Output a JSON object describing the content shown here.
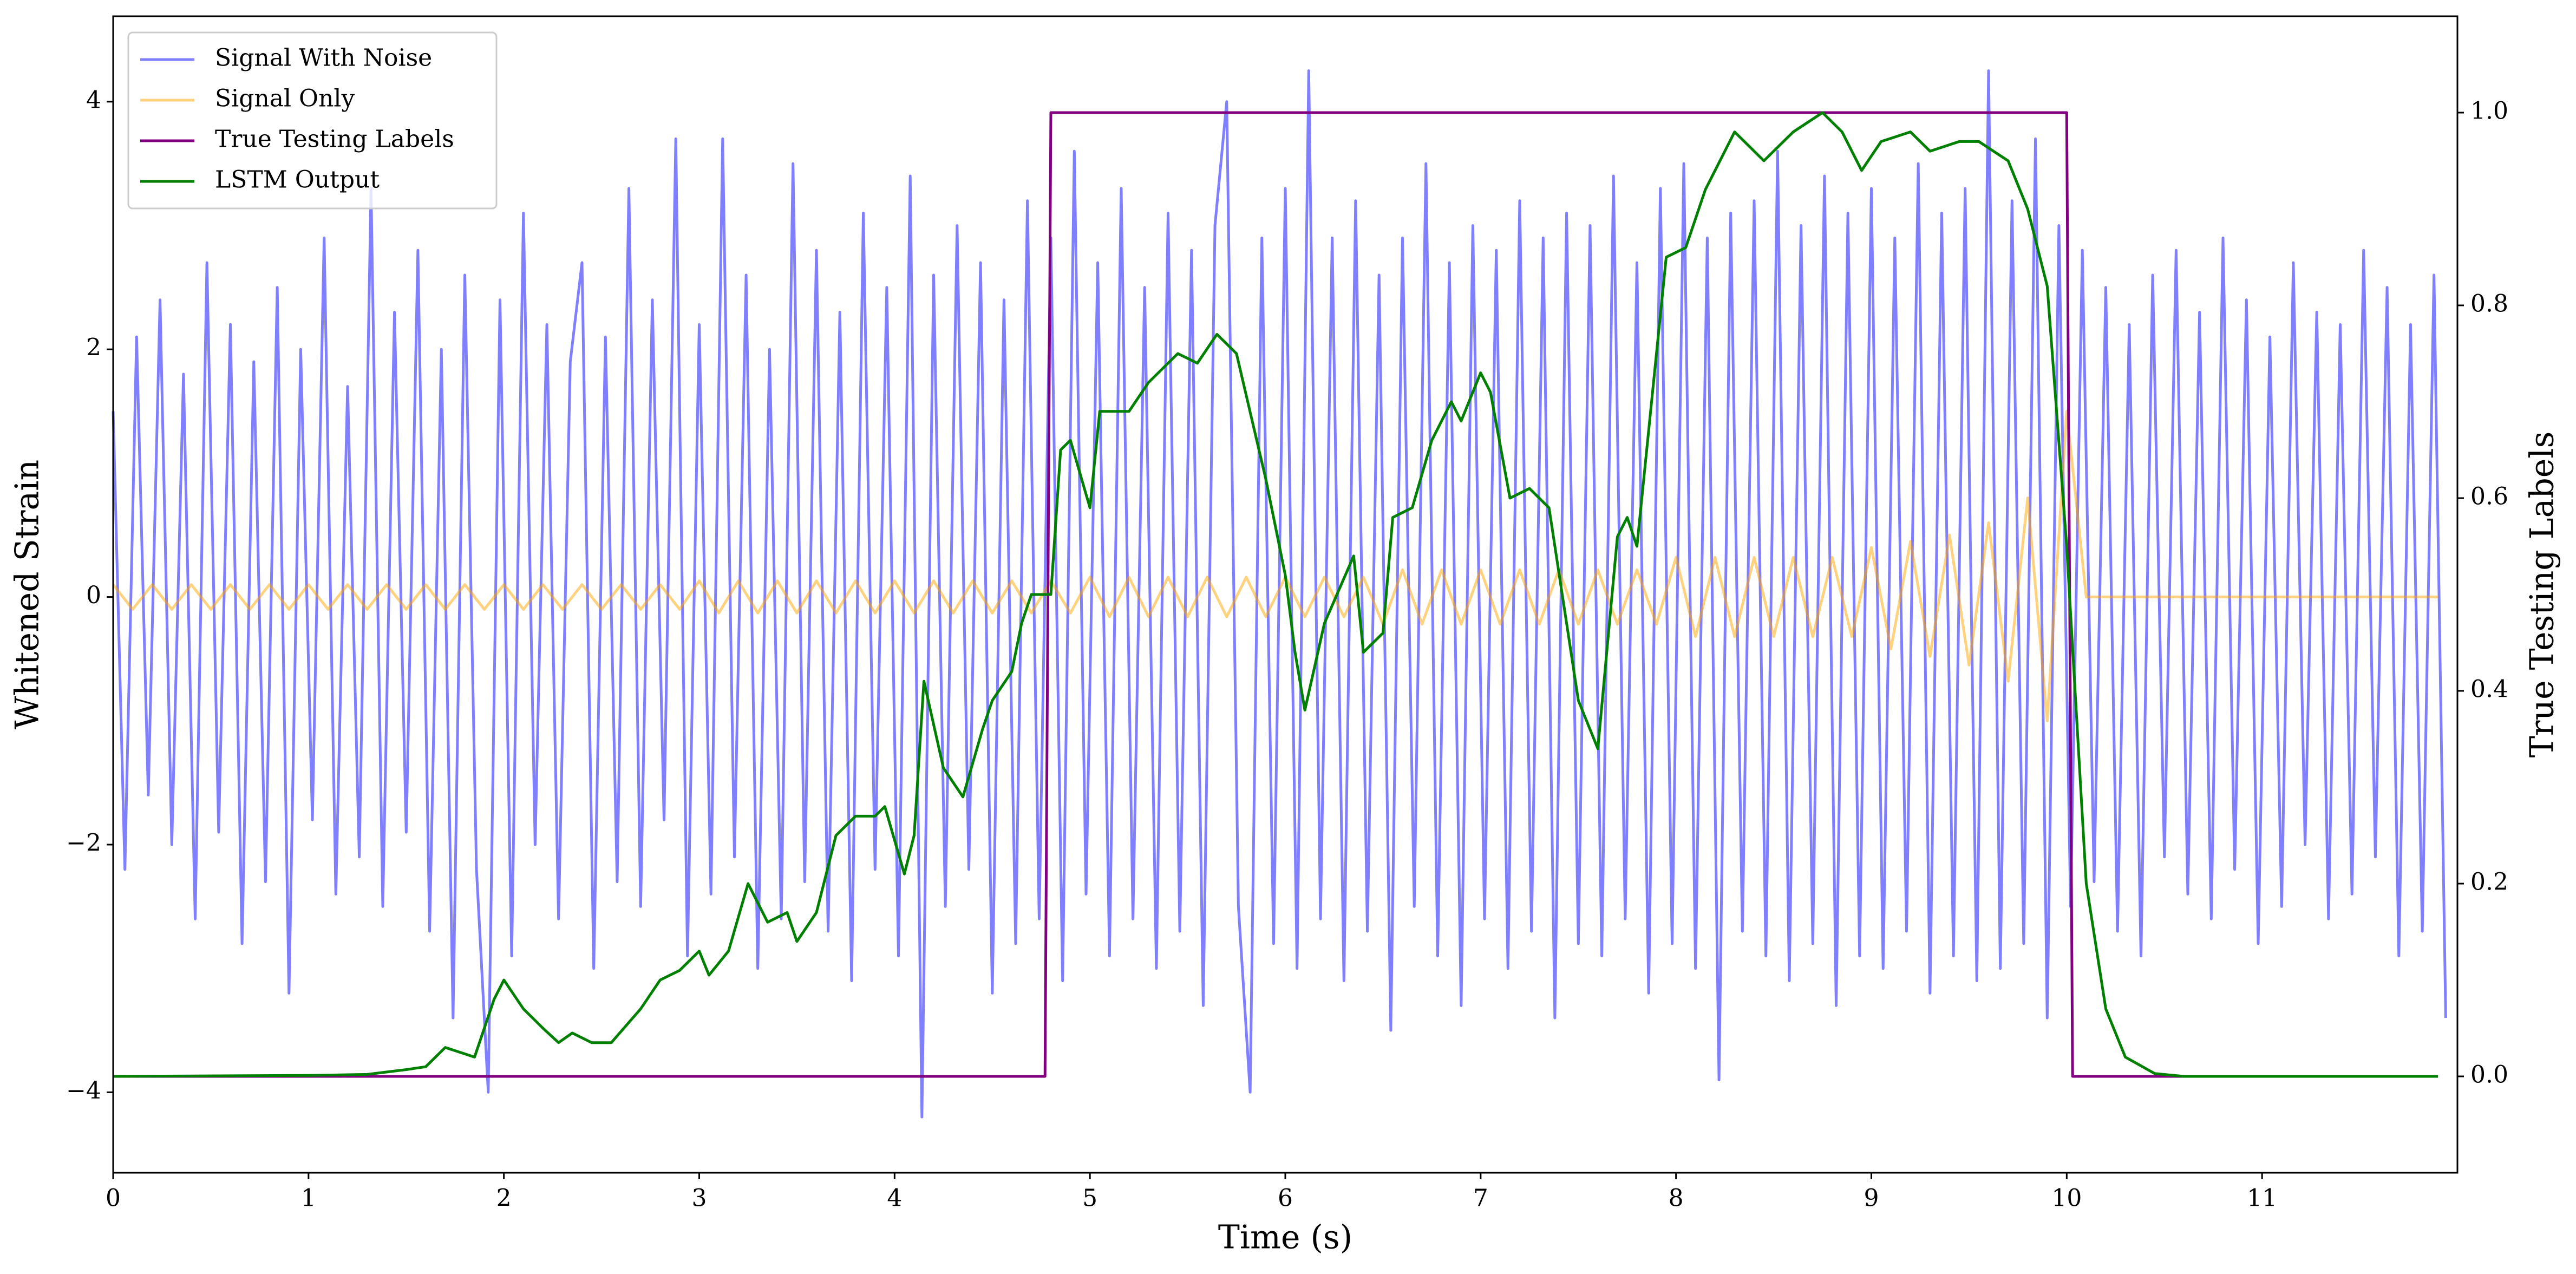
{
  "chart_data": {
    "type": "line",
    "xlabel": "Time (s)",
    "ylabel": "Whitened Strain",
    "y2label": "True Testing Labels",
    "xlim": [
      0,
      12
    ],
    "xticks": [
      0,
      1,
      2,
      3,
      4,
      5,
      6,
      7,
      8,
      9,
      10,
      11
    ],
    "ylim": [
      -4.65,
      4.69
    ],
    "yticks": [
      {
        "value": -4,
        "label": "−4"
      },
      {
        "value": -2,
        "label": "−2"
      },
      0,
      2,
      4
    ],
    "y2lim": [
      -0.1,
      1.1
    ],
    "y2ticks": [
      {
        "value": 0,
        "label": "0.0"
      },
      {
        "value": 0.2,
        "label": "0.2"
      },
      {
        "value": 0.4,
        "label": "0.4"
      },
      {
        "value": 0.6,
        "label": "0.6"
      },
      {
        "value": 0.8,
        "label": "0.8"
      },
      {
        "value": 1,
        "label": "1.0"
      }
    ],
    "legend": "upper left",
    "grid": false,
    "series": [
      {
        "name": "Signal With Noise",
        "color": "#0000ff",
        "alpha": 0.5,
        "x": [
          0,
          0.06,
          0.12,
          0.18,
          0.24,
          0.3,
          0.36,
          0.42,
          0.48,
          0.54,
          0.6,
          0.66,
          0.72,
          0.78,
          0.84,
          0.9,
          0.96,
          1.02,
          1.08,
          1.14,
          1.2,
          1.26,
          1.32,
          1.38,
          1.44,
          1.5,
          1.56,
          1.62,
          1.68,
          1.74,
          1.8,
          1.86,
          1.92,
          1.98,
          2.04,
          2.1,
          2.16,
          2.22,
          2.28,
          2.34,
          2.4,
          2.46,
          2.52,
          2.58,
          2.64,
          2.7,
          2.76,
          2.82,
          2.88,
          2.94,
          3,
          3.06,
          3.12,
          3.18,
          3.24,
          3.3,
          3.36,
          3.42,
          3.48,
          3.54,
          3.6,
          3.66,
          3.72,
          3.78,
          3.84,
          3.9,
          3.96,
          4.02,
          4.08,
          4.14,
          4.2,
          4.26,
          4.32,
          4.38,
          4.44,
          4.5,
          4.56,
          4.62,
          4.68,
          4.74,
          4.8,
          4.86,
          4.92,
          4.98,
          5.04,
          5.1,
          5.16,
          5.22,
          5.28,
          5.34,
          5.4,
          5.46,
          5.52,
          5.58,
          5.64,
          5.7,
          5.76,
          5.82,
          5.88,
          5.94,
          6,
          6.06,
          6.12,
          6.18,
          6.24,
          6.3,
          6.36,
          6.42,
          6.48,
          6.54,
          6.6,
          6.66,
          6.72,
          6.78,
          6.84,
          6.9,
          6.96,
          7.02,
          7.08,
          7.14,
          7.2,
          7.26,
          7.32,
          7.38,
          7.44,
          7.5,
          7.56,
          7.62,
          7.68,
          7.74,
          7.8,
          7.86,
          7.92,
          7.98,
          8.04,
          8.1,
          8.16,
          8.22,
          8.28,
          8.34,
          8.4,
          8.46,
          8.52,
          8.58,
          8.64,
          8.7,
          8.76,
          8.82,
          8.88,
          8.94,
          9,
          9.06,
          9.12,
          9.18,
          9.24,
          9.3,
          9.36,
          9.42,
          9.48,
          9.54,
          9.6,
          9.66,
          9.72,
          9.78,
          9.84,
          9.9,
          9.96,
          10.02,
          10.08,
          10.14,
          10.2,
          10.26,
          10.32,
          10.38,
          10.44,
          10.5,
          10.56,
          10.62,
          10.68,
          10.74,
          10.8,
          10.86,
          10.92,
          10.98,
          11.04,
          11.1,
          11.16,
          11.22,
          11.28,
          11.34,
          11.4,
          11.46,
          11.52,
          11.58,
          11.64,
          11.7,
          11.76,
          11.82,
          11.88,
          11.94
        ],
        "values": [
          1.5,
          -2.2,
          2.1,
          -1.6,
          2.4,
          -2.0,
          1.8,
          -2.6,
          2.7,
          -1.9,
          2.2,
          -2.8,
          1.9,
          -2.3,
          2.5,
          -3.2,
          2.0,
          -1.8,
          2.9,
          -2.4,
          1.7,
          -2.1,
          3.3,
          -2.5,
          2.3,
          -1.9,
          2.8,
          -2.7,
          2.0,
          -3.4,
          2.6,
          -2.2,
          -4.0,
          2.4,
          -2.9,
          3.1,
          -2.0,
          2.2,
          -2.6,
          1.9,
          2.7,
          -3.0,
          2.1,
          -2.3,
          3.3,
          -2.5,
          2.4,
          -1.8,
          3.7,
          -2.9,
          2.2,
          -2.4,
          3.7,
          -2.1,
          2.6,
          -3.0,
          2.0,
          -2.6,
          3.5,
          -2.3,
          2.8,
          -2.7,
          2.3,
          -3.1,
          3.1,
          -2.2,
          2.5,
          -2.9,
          3.4,
          -4.2,
          2.6,
          -2.5,
          3.0,
          -2.2,
          2.7,
          -3.2,
          2.4,
          -2.8,
          3.2,
          -2.6,
          2.9,
          -3.1,
          3.6,
          -2.4,
          2.7,
          -2.9,
          3.3,
          -2.6,
          2.5,
          -3.0,
          3.1,
          -2.7,
          2.8,
          -3.3,
          3.0,
          4.0,
          -2.5,
          -4.0,
          2.9,
          -2.8,
          3.3,
          -3.0,
          4.25,
          -2.6,
          2.9,
          -3.1,
          3.2,
          -2.7,
          2.6,
          -3.5,
          2.9,
          -2.5,
          3.5,
          -2.9,
          2.7,
          -3.3,
          3.0,
          -2.6,
          2.8,
          -3.0,
          3.2,
          -2.7,
          2.9,
          -3.4,
          3.1,
          -2.8,
          3.0,
          -2.9,
          3.4,
          -2.6,
          2.7,
          -3.2,
          3.3,
          -2.8,
          3.5,
          -3.0,
          2.9,
          -3.9,
          3.1,
          -2.7,
          3.2,
          -2.9,
          3.6,
          -3.1,
          3.0,
          -2.8,
          3.4,
          -3.3,
          3.1,
          -2.9,
          3.3,
          -3.0,
          2.9,
          -2.7,
          3.5,
          -3.2,
          3.1,
          -2.9,
          3.3,
          -3.1,
          4.25,
          -3.0,
          3.2,
          -2.8,
          3.7,
          -3.4,
          3.0,
          -2.5,
          2.8,
          -2.3,
          2.5,
          -2.7,
          2.2,
          -2.9,
          2.6,
          -2.1,
          2.8,
          -2.4,
          2.3,
          -2.6,
          2.9,
          -2.2,
          2.4,
          -2.8,
          2.1,
          -2.5,
          2.7,
          -2.0,
          2.3,
          -2.6,
          2.2,
          -2.4,
          2.8,
          -2.1,
          2.5,
          -2.9,
          2.2,
          -2.7,
          2.6,
          -3.4
        ]
      },
      {
        "name": "Signal Only",
        "color": "#ffa500",
        "alpha": 0.5,
        "x": [
          0,
          0.1,
          0.2,
          0.3,
          0.4,
          0.5,
          0.6,
          0.7,
          0.8,
          0.9,
          1,
          1.1,
          1.2,
          1.3,
          1.4,
          1.5,
          1.6,
          1.7,
          1.8,
          1.9,
          2,
          2.1,
          2.2,
          2.3,
          2.4,
          2.5,
          2.6,
          2.7,
          2.8,
          2.9,
          3,
          3.1,
          3.2,
          3.3,
          3.4,
          3.5,
          3.6,
          3.7,
          3.8,
          3.9,
          4,
          4.1,
          4.2,
          4.3,
          4.4,
          4.5,
          4.6,
          4.7,
          4.8,
          4.9,
          5,
          5.1,
          5.2,
          5.3,
          5.4,
          5.5,
          5.6,
          5.7,
          5.8,
          5.9,
          6,
          6.1,
          6.2,
          6.3,
          6.4,
          6.5,
          6.6,
          6.7,
          6.8,
          6.9,
          7,
          7.1,
          7.2,
          7.3,
          7.4,
          7.5,
          7.6,
          7.7,
          7.8,
          7.9,
          8,
          8.1,
          8.2,
          8.3,
          8.4,
          8.5,
          8.6,
          8.7,
          8.8,
          8.9,
          9,
          9.1,
          9.2,
          9.3,
          9.4,
          9.5,
          9.6,
          9.7,
          9.8,
          9.9,
          10,
          10.1,
          10.2,
          10.3,
          10.4,
          10.5,
          10.6,
          10.7,
          10.8,
          10.9,
          11,
          11.1,
          11.2,
          11.3,
          11.4,
          11.5,
          11.6,
          11.7,
          11.8,
          11.9
        ],
        "values": [
          0.1,
          -0.1,
          0.1,
          -0.1,
          0.1,
          -0.1,
          0.1,
          -0.1,
          0.1,
          -0.1,
          0.1,
          -0.1,
          0.1,
          -0.1,
          0.1,
          -0.1,
          0.1,
          -0.1,
          0.1,
          -0.1,
          0.1,
          -0.1,
          0.1,
          -0.1,
          0.1,
          -0.1,
          0.1,
          -0.1,
          0.1,
          -0.1,
          0.13,
          -0.13,
          0.13,
          -0.13,
          0.13,
          -0.13,
          0.13,
          -0.13,
          0.13,
          -0.13,
          0.13,
          -0.13,
          0.13,
          -0.13,
          0.13,
          -0.13,
          0.13,
          -0.13,
          0.13,
          -0.13,
          0.16,
          -0.16,
          0.16,
          -0.16,
          0.16,
          -0.16,
          0.16,
          -0.16,
          0.16,
          -0.16,
          0.16,
          -0.16,
          0.16,
          -0.16,
          0.16,
          -0.22,
          0.22,
          -0.22,
          0.22,
          -0.22,
          0.22,
          -0.22,
          0.22,
          -0.22,
          0.22,
          -0.22,
          0.22,
          -0.22,
          0.22,
          -0.22,
          0.32,
          -0.32,
          0.32,
          -0.32,
          0.32,
          -0.32,
          0.32,
          -0.32,
          0.32,
          -0.32,
          0.4,
          -0.42,
          0.45,
          -0.48,
          0.5,
          -0.55,
          0.6,
          -0.68,
          0.8,
          -1.0,
          1.5,
          0,
          0,
          0,
          0,
          0,
          0,
          0,
          0,
          0,
          0,
          0,
          0,
          0,
          0,
          0,
          0,
          0,
          0,
          0
        ]
      },
      {
        "name": "True Testing Labels",
        "color": "#800080",
        "axis": "y2",
        "x": [
          0,
          4.77,
          4.8,
          10.0,
          10.03,
          11.9
        ],
        "values": [
          0,
          0,
          1,
          1,
          0,
          0
        ]
      },
      {
        "name": "LSTM Output",
        "color": "#008000",
        "axis": "y2",
        "x": [
          0,
          1,
          1.3,
          1.5,
          1.6,
          1.7,
          1.85,
          1.95,
          2.0,
          2.1,
          2.2,
          2.28,
          2.35,
          2.45,
          2.55,
          2.7,
          2.8,
          2.9,
          3.0,
          3.05,
          3.15,
          3.25,
          3.35,
          3.45,
          3.5,
          3.6,
          3.7,
          3.8,
          3.9,
          3.95,
          4.05,
          4.1,
          4.15,
          4.25,
          4.35,
          4.45,
          4.5,
          4.6,
          4.65,
          4.7,
          4.8,
          4.85,
          4.9,
          5.0,
          5.05,
          5.2,
          5.3,
          5.45,
          5.55,
          5.65,
          5.75,
          5.9,
          6.0,
          6.05,
          6.1,
          6.2,
          6.35,
          6.4,
          6.5,
          6.55,
          6.65,
          6.75,
          6.85,
          6.9,
          7.0,
          7.05,
          7.15,
          7.25,
          7.35,
          7.5,
          7.6,
          7.7,
          7.75,
          7.8,
          7.95,
          8.05,
          8.15,
          8.3,
          8.45,
          8.6,
          8.75,
          8.85,
          8.95,
          9.05,
          9.2,
          9.3,
          9.45,
          9.55,
          9.7,
          9.8,
          9.9,
          10.0,
          10.1,
          10.2,
          10.3,
          10.45,
          10.6,
          11.9
        ],
        "values": [
          0,
          0.001,
          0.002,
          0.007,
          0.01,
          0.03,
          0.02,
          0.08,
          0.1,
          0.07,
          0.05,
          0.035,
          0.045,
          0.035,
          0.035,
          0.07,
          0.1,
          0.11,
          0.13,
          0.105,
          0.13,
          0.2,
          0.16,
          0.17,
          0.14,
          0.17,
          0.25,
          0.27,
          0.27,
          0.28,
          0.21,
          0.25,
          0.41,
          0.32,
          0.29,
          0.36,
          0.39,
          0.42,
          0.47,
          0.5,
          0.5,
          0.65,
          0.66,
          0.59,
          0.69,
          0.69,
          0.72,
          0.75,
          0.74,
          0.77,
          0.75,
          0.62,
          0.52,
          0.44,
          0.38,
          0.47,
          0.54,
          0.44,
          0.46,
          0.58,
          0.59,
          0.66,
          0.7,
          0.68,
          0.73,
          0.71,
          0.6,
          0.61,
          0.59,
          0.39,
          0.34,
          0.56,
          0.58,
          0.55,
          0.85,
          0.86,
          0.92,
          0.98,
          0.95,
          0.98,
          1.0,
          0.98,
          0.94,
          0.97,
          0.98,
          0.96,
          0.97,
          0.97,
          0.95,
          0.9,
          0.82,
          0.55,
          0.2,
          0.07,
          0.02,
          0.003,
          0,
          0
        ]
      }
    ]
  }
}
